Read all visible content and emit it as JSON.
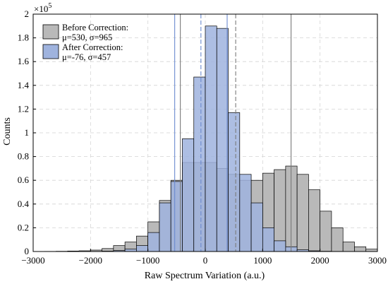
{
  "chart_data": {
    "type": "bar",
    "xlabel": "Raw Spectrum Variation (a.u.)",
    "ylabel": "Counts",
    "scale_label": "×10",
    "scale_exponent": "5",
    "xlim": [
      -3000,
      3000
    ],
    "ylim": [
      0,
      2
    ],
    "x_ticks": [
      "−3000",
      "−2000",
      "−1000",
      "0",
      "1000",
      "2000",
      "3000"
    ],
    "y_ticks": [
      "0",
      "0.2",
      "0.4",
      "0.6",
      "0.8",
      "1",
      "1.2",
      "1.4",
      "1.6",
      "1.8",
      "2"
    ],
    "grid": true,
    "legend_position": "top-left",
    "bin_edges": [
      -2800,
      -2600,
      -2400,
      -2200,
      -2000,
      -1800,
      -1600,
      -1400,
      -1200,
      -1000,
      -800,
      -600,
      -400,
      -200,
      0,
      200,
      400,
      600,
      800,
      1000,
      1200,
      1400,
      1600,
      1800,
      2000,
      2200,
      2400,
      2600,
      2800
    ],
    "series": [
      {
        "name": "Before Correction:",
        "stats": "μ=530, σ=965",
        "color": "#b9b9b9",
        "values": [
          0.001,
          0.002,
          0.004,
          0.006,
          0.012,
          0.025,
          0.05,
          0.08,
          0.13,
          0.25,
          0.43,
          0.6,
          0.75,
          0.75,
          0.75,
          0.7,
          0.65,
          0.6,
          0.6,
          0.66,
          0.69,
          0.72,
          0.65,
          0.52,
          0.34,
          0.2,
          0.08,
          0.04,
          0.02
        ]
      },
      {
        "name": "After Correction:",
        "stats": "μ=-76, σ=457",
        "color": "#9fb3de",
        "values": [
          0,
          0,
          0,
          0,
          0.001,
          0.003,
          0.008,
          0.02,
          0.05,
          0.16,
          0.41,
          0.59,
          0.95,
          1.47,
          1.9,
          1.88,
          1.17,
          0.65,
          0.41,
          0.2,
          0.09,
          0.04,
          0.015,
          0.006,
          0.002,
          0.001,
          0,
          0,
          0
        ]
      }
    ],
    "vlines": [
      {
        "series": "Before Correction:",
        "values": [
          -435,
          530,
          1495
        ],
        "color": "#7a7a7a"
      },
      {
        "series": "After Correction:",
        "values": [
          -533,
          -76,
          381
        ],
        "color": "#6b8bd0"
      }
    ]
  }
}
